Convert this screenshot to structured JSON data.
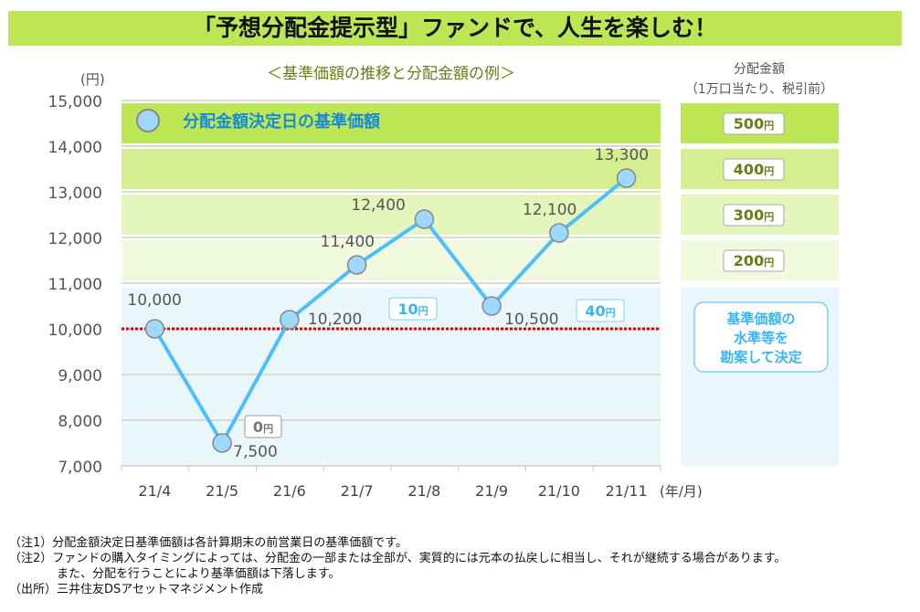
{
  "title": "「予想分配金提示型」ファンドで、人生を楽しむ！",
  "chart_data": {
    "type": "line",
    "title": "＜基準価額の推移と分配金額の例＞",
    "ylabel": "(円)",
    "xlabel": "(年/月)",
    "ylim": [
      7000,
      15000
    ],
    "yticks": [
      "7,000",
      "8,000",
      "9,000",
      "10,000",
      "11,000",
      "12,000",
      "13,000",
      "14,000",
      "15,000"
    ],
    "categories": [
      "21/4",
      "21/5",
      "21/6",
      "21/7",
      "21/8",
      "21/9",
      "21/10",
      "21/11"
    ],
    "series": [
      {
        "name": "分配金額決定日の基準価額",
        "values": [
          10000,
          7500,
          10200,
          11400,
          12400,
          10500,
          12100,
          13300
        ],
        "labels": [
          "10,000",
          "7,500",
          "10,200",
          "11,400",
          "12,400",
          "10,500",
          "12,100",
          "13,300"
        ]
      }
    ],
    "reference_line": 10000,
    "distribution_markers": [
      {
        "category": "21/5",
        "label": "0",
        "unit": "円"
      },
      {
        "category": "21/6",
        "label": "10",
        "unit": "円"
      },
      {
        "category": "21/9",
        "label": "40",
        "unit": "円"
      }
    ],
    "legend": "分配金額決定日の基準価額",
    "right_panel": {
      "header1": "分配金額",
      "header2": "（1万口当たり、税引前）",
      "bands": [
        {
          "range": [
            14000,
            15000
          ],
          "amount": "500"
        },
        {
          "range": [
            13000,
            14000
          ],
          "amount": "400"
        },
        {
          "range": [
            12000,
            13000
          ],
          "amount": "300"
        },
        {
          "range": [
            11000,
            12000
          ],
          "amount": "200"
        }
      ],
      "unit": "円",
      "below_text": [
        "基準価額の",
        "水準等を",
        "勘案して決定"
      ]
    }
  },
  "notes": [
    "（注1）分配金額決定日基準価額は各計算期末の前営業日の基準価額です。",
    "（注2）ファンドの購入タイミングによっては、分配金の一部または全部が、実質的には元本の払戻しに相当し、それが継続する場合があります。",
    "　　　　また、分配を行うことにより基準価額は下落します。",
    "（出所）三井住友DSアセットマネジメント作成"
  ],
  "colors": {
    "line": "#4dbfff",
    "marker": "#9ed8ff",
    "ref": "#e00000",
    "accent": "#bde655"
  }
}
